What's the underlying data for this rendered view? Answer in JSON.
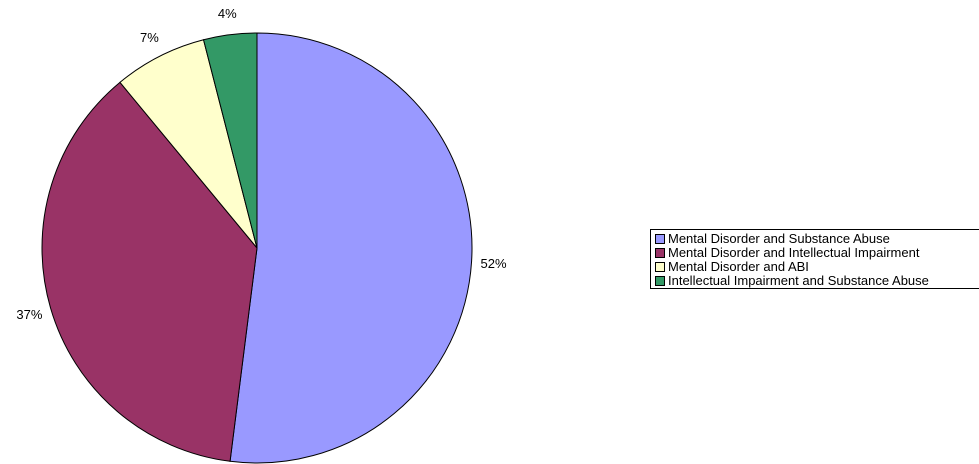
{
  "chart_data": {
    "type": "pie",
    "title": "",
    "categories": [
      "Mental Disorder and Substance Abuse",
      "Mental Disorder and Intellectual Impairment",
      "Mental Disorder and ABI",
      "Intellectual Impairment and Substance Abuse"
    ],
    "values": [
      52,
      37,
      7,
      4
    ],
    "data_labels": [
      "52%",
      "37%",
      "7%",
      "4%"
    ],
    "colors": [
      "#9999ff",
      "#993366",
      "#ffffcc",
      "#339966"
    ],
    "legend_position": "right"
  }
}
